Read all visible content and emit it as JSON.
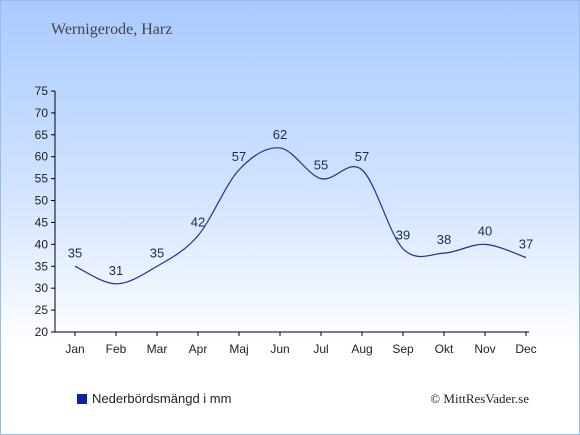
{
  "header": {
    "location": "Wernigerode, Harz"
  },
  "chart_data": {
    "type": "line",
    "categories": [
      "Jan",
      "Feb",
      "Mar",
      "Apr",
      "Maj",
      "Jun",
      "Jul",
      "Aug",
      "Sep",
      "Okt",
      "Nov",
      "Dec"
    ],
    "series": [
      {
        "name": "Nederbördsmängd i mm",
        "values": [
          35,
          31,
          35,
          42,
          57,
          62,
          55,
          57,
          39,
          38,
          40,
          37
        ],
        "color": "#1d2f9a"
      }
    ],
    "ylim": [
      20,
      75
    ],
    "yticks": [
      20,
      25,
      30,
      35,
      40,
      45,
      50,
      55,
      60,
      65,
      70,
      75
    ],
    "grid": false,
    "legend_position": "bottom-left"
  },
  "legend": {
    "label": "Nederbördsmängd i mm",
    "color": "#0b22a8"
  },
  "footer": {
    "copyright": "© MittResVader.se"
  }
}
